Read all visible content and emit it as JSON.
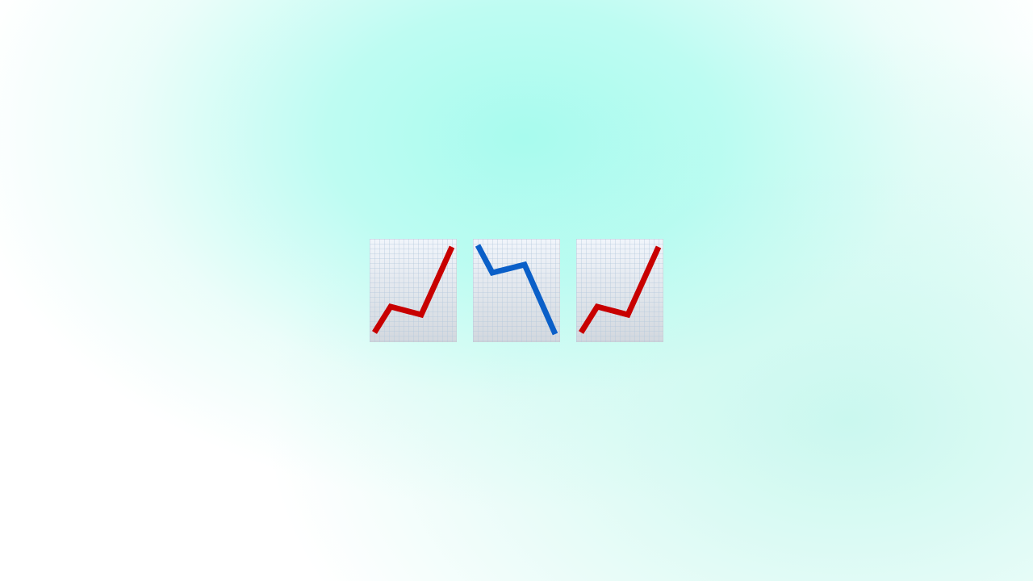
{
  "colors": {
    "background_glow": "#a8fbee",
    "background_base": "#ffffff",
    "sheet_top": "#f1f5fb",
    "sheet_bottom": "#d3d8de",
    "grid_line": "#b4c8dc",
    "increasing_line": "#c80000",
    "decreasing_line": "#0a5fc8"
  },
  "emojis": [
    {
      "icon": "chart-increasing-icon",
      "trend": "up"
    },
    {
      "icon": "chart-decreasing-icon",
      "trend": "down"
    },
    {
      "icon": "chart-increasing-icon",
      "trend": "up"
    }
  ]
}
